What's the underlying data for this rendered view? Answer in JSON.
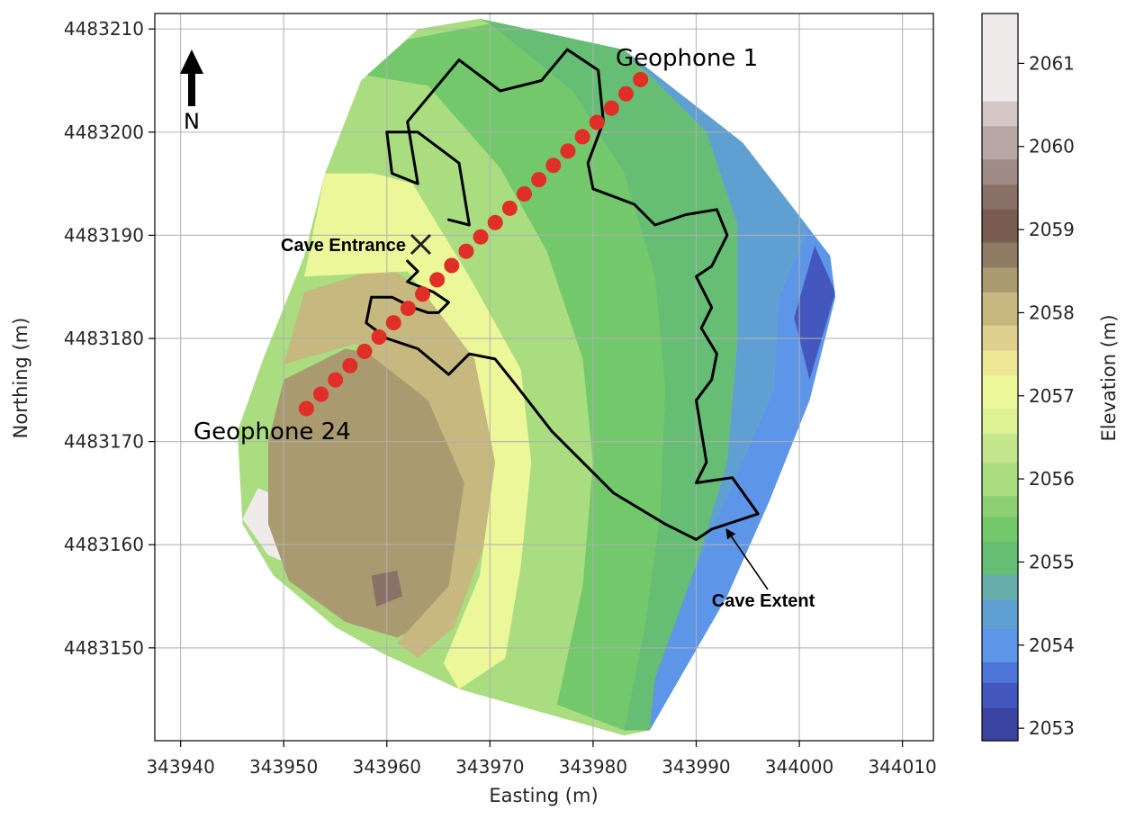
{
  "chart_data": {
    "type": "heatmap",
    "subtype": "filled-contour map",
    "title": "",
    "xlabel": "Easting (m)",
    "ylabel": "Northing (m)",
    "xlim": [
      343937.5,
      344013
    ],
    "ylim": [
      4483141,
      4483211.5
    ],
    "xticks": [
      343940,
      343950,
      343960,
      343970,
      343980,
      343990,
      344000,
      344010
    ],
    "yticks": [
      4483150,
      4483160,
      4483170,
      4483180,
      4483190,
      4483200,
      4483210
    ],
    "grid": true,
    "colorbar": {
      "label": "Elevation (m)",
      "ticks": [
        2053,
        2054,
        2055,
        2056,
        2057,
        2058,
        2059,
        2060,
        2061
      ],
      "range": [
        2052.85,
        2061.6
      ],
      "levels": [
        {
          "lo": 2052.85,
          "hi": 2053.25,
          "color": "#3b44a1"
        },
        {
          "lo": 2053.25,
          "hi": 2053.55,
          "color": "#4457be"
        },
        {
          "lo": 2053.55,
          "hi": 2053.8,
          "color": "#4d74d9"
        },
        {
          "lo": 2053.8,
          "hi": 2054.2,
          "color": "#5d95e8"
        },
        {
          "lo": 2054.2,
          "hi": 2054.55,
          "color": "#609fd2"
        },
        {
          "lo": 2054.55,
          "hi": 2054.85,
          "color": "#67aeac"
        },
        {
          "lo": 2054.85,
          "hi": 2055.25,
          "color": "#66bd74"
        },
        {
          "lo": 2055.25,
          "hi": 2055.55,
          "color": "#73c86b"
        },
        {
          "lo": 2055.55,
          "hi": 2055.8,
          "color": "#8dd074"
        },
        {
          "lo": 2055.8,
          "hi": 2056.2,
          "color": "#a9dd80"
        },
        {
          "lo": 2056.2,
          "hi": 2056.55,
          "color": "#c4e68d"
        },
        {
          "lo": 2056.55,
          "hi": 2056.85,
          "color": "#dff293"
        },
        {
          "lo": 2056.85,
          "hi": 2057.25,
          "color": "#ecf79a"
        },
        {
          "lo": 2057.25,
          "hi": 2057.55,
          "color": "#ede796"
        },
        {
          "lo": 2057.55,
          "hi": 2057.85,
          "color": "#dfd08f"
        },
        {
          "lo": 2057.85,
          "hi": 2058.25,
          "color": "#c6b87e"
        },
        {
          "lo": 2058.25,
          "hi": 2058.55,
          "color": "#a99a70"
        },
        {
          "lo": 2058.55,
          "hi": 2058.85,
          "color": "#8e7c62"
        },
        {
          "lo": 2058.85,
          "hi": 2059.25,
          "color": "#785c50"
        },
        {
          "lo": 2059.25,
          "hi": 2059.55,
          "color": "#8a7168"
        },
        {
          "lo": 2059.55,
          "hi": 2059.85,
          "color": "#a08c87"
        },
        {
          "lo": 2059.85,
          "hi": 2060.25,
          "color": "#b8a7a4"
        },
        {
          "lo": 2060.25,
          "hi": 2060.55,
          "color": "#d4c6c4"
        },
        {
          "lo": 2060.55,
          "hi": 2061.6,
          "color": "#f0ebeb"
        }
      ]
    },
    "map_outline": [
      [
        343959.5,
        4483149.5
      ],
      [
        343967.0,
        4483146.0
      ],
      [
        343983.0,
        4483141.5
      ],
      [
        343985.5,
        4483142.0
      ],
      [
        343993.0,
        4483155.0
      ],
      [
        343997.0,
        4483164.0
      ],
      [
        344001.0,
        4483174.0
      ],
      [
        344003.5,
        4483184.0
      ],
      [
        344003.0,
        4483188.0
      ],
      [
        343994.5,
        4483199.0
      ],
      [
        343983.0,
        4483208.0
      ],
      [
        343969.0,
        4483211.0
      ],
      [
        343963.0,
        4483210.0
      ],
      [
        343957.5,
        4483205.0
      ],
      [
        343954.0,
        4483196.0
      ],
      [
        343952.0,
        4483188.0
      ],
      [
        343948.0,
        4483178.0
      ],
      [
        343945.5,
        4483171.0
      ],
      [
        343946.0,
        4483162.0
      ],
      [
        343949.0,
        4483157.0
      ],
      [
        343955.0,
        4483152.0
      ]
    ],
    "elevation_bands": [
      {
        "elevation": 2061.0,
        "polygon": [
          [
            343946.0,
            4483162.5
          ],
          [
            343948.5,
            4483159.0
          ],
          [
            343952.0,
            4483157.5
          ],
          [
            343953.5,
            4483160.0
          ],
          [
            343951.0,
            4483164.0
          ],
          [
            343947.5,
            4483165.5
          ]
        ]
      },
      {
        "elevation": 2060.0,
        "polygon": [
          [
            343952.5,
            4483158.0
          ],
          [
            343957.0,
            4483155.0
          ],
          [
            343962.0,
            4483156.5
          ],
          [
            343965.0,
            4483161.0
          ],
          [
            343965.0,
            4483168.5
          ],
          [
            343962.0,
            4483171.5
          ],
          [
            343957.0,
            4483170.0
          ],
          [
            343954.0,
            4483165.0
          ]
        ]
      },
      {
        "elevation": 2059.0,
        "polygon": [
          [
            343959.0,
            4483152.5
          ],
          [
            343963.5,
            4483154.0
          ],
          [
            343966.5,
            4483159.5
          ],
          [
            343967.0,
            4483167.0
          ],
          [
            343964.0,
            4483172.5
          ],
          [
            343958.0,
            4483174.5
          ],
          [
            343953.0,
            4483172.5
          ],
          [
            343949.0,
            4483166.0
          ],
          [
            343949.5,
            4483160.5
          ]
        ]
      },
      {
        "elevation": 2058.5,
        "polygon": [
          [
            343950.0,
            4483176.0
          ],
          [
            343956.0,
            4483179.0
          ],
          [
            343961.5,
            4483178.0
          ],
          [
            343966.0,
            4483173.0
          ],
          [
            343968.5,
            4483166.0
          ],
          [
            343968.0,
            4483159.0
          ],
          [
            343965.0,
            4483153.0
          ],
          [
            343961.0,
            4483151.0
          ],
          [
            343956.0,
            4483152.5
          ],
          [
            343950.5,
            4483156.5
          ],
          [
            343948.5,
            4483162.0
          ],
          [
            343948.5,
            4483170.0
          ]
        ]
      },
      {
        "elevation": 2058.0,
        "polygon": [
          [
            343952.0,
            4483184.5
          ],
          [
            343960.0,
            4483187.0
          ],
          [
            343964.5,
            4483184.0
          ],
          [
            343967.5,
            4483180.0
          ],
          [
            343970.0,
            4483176.0
          ],
          [
            343971.0,
            4483168.0
          ],
          [
            343969.5,
            4483160.0
          ],
          [
            343966.5,
            4483152.0
          ],
          [
            343963.0,
            4483149.0
          ],
          [
            343961.0,
            4483150.5
          ],
          [
            343966.0,
            4483156.0
          ],
          [
            343967.5,
            4483166.0
          ],
          [
            343964.0,
            4483174.0
          ],
          [
            343957.0,
            4483179.5
          ],
          [
            343950.0,
            4483177.5
          ]
        ]
      },
      {
        "elevation": 2057.0,
        "polygon": [
          [
            343954.0,
            4483196.0
          ],
          [
            343962.0,
            4483196.0
          ],
          [
            343966.0,
            4483190.0
          ],
          [
            343970.0,
            4483183.0
          ],
          [
            343973.0,
            4483177.0
          ],
          [
            343974.0,
            4483168.0
          ],
          [
            343973.0,
            4483158.0
          ],
          [
            343971.5,
            4483149.0
          ],
          [
            343967.0,
            4483146.0
          ],
          [
            343965.5,
            4483148.5
          ],
          [
            343969.0,
            4483157.0
          ],
          [
            343970.5,
            4483168.0
          ],
          [
            343968.5,
            4483178.0
          ],
          [
            343962.0,
            4483186.5
          ],
          [
            343952.0,
            4483186.0
          ]
        ]
      },
      {
        "elevation": 2056.2,
        "polygon": [
          [
            343957.5,
            4483205.0
          ],
          [
            343965.0,
            4483204.0
          ],
          [
            343972.0,
            4483195.0
          ],
          [
            343976.0,
            4483188.0
          ],
          [
            343979.0,
            4483178.0
          ],
          [
            343980.0,
            4483168.0
          ],
          [
            343979.0,
            4483156.0
          ],
          [
            343976.5,
            4483144.5
          ],
          [
            343971.5,
            4483147.0
          ],
          [
            343973.5,
            4483157.0
          ],
          [
            343974.5,
            4483168.0
          ],
          [
            343973.0,
            4483177.0
          ],
          [
            343968.0,
            4483186.0
          ],
          [
            343962.5,
            4483195.0
          ],
          [
            343955.0,
            4483197.0
          ]
        ]
      },
      {
        "elevation": 2055.5,
        "polygon": [
          [
            343962.0,
            4483209.0
          ],
          [
            343970.0,
            4483210.5
          ],
          [
            343978.0,
            4483204.0
          ],
          [
            343983.0,
            4483196.0
          ],
          [
            343986.0,
            4483186.0
          ],
          [
            343987.0,
            4483175.0
          ],
          [
            343986.5,
            4483163.0
          ],
          [
            343985.0,
            4483152.0
          ],
          [
            343983.0,
            4483142.0
          ],
          [
            343976.5,
            4483144.5
          ],
          [
            343979.0,
            4483156.0
          ],
          [
            343980.0,
            4483168.0
          ],
          [
            343979.0,
            4483178.0
          ],
          [
            343975.5,
            4483188.5
          ],
          [
            343971.0,
            4483196.5
          ],
          [
            343964.0,
            4483204.5
          ],
          [
            343958.0,
            4483205.5
          ]
        ]
      },
      {
        "elevation": 2055.0,
        "polygon": [
          [
            343969.0,
            4483211.0
          ],
          [
            343983.0,
            4483208.0
          ],
          [
            343991.0,
            4483200.0
          ],
          [
            343994.0,
            4483191.0
          ],
          [
            343994.0,
            4483180.0
          ],
          [
            343993.0,
            4483168.0
          ],
          [
            343990.0,
            4483158.0
          ],
          [
            343985.5,
            4483142.0
          ],
          [
            343983.0,
            4483142.0
          ],
          [
            343985.0,
            4483152.0
          ],
          [
            343986.5,
            4483163.0
          ],
          [
            343987.0,
            4483175.0
          ],
          [
            343986.0,
            4483186.0
          ],
          [
            343983.0,
            4483196.0
          ],
          [
            343978.0,
            4483204.0
          ],
          [
            343970.0,
            4483210.5
          ]
        ]
      },
      {
        "elevation": 2054.5,
        "polygon": [
          [
            343983.0,
            4483208.0
          ],
          [
            343994.5,
            4483199.0
          ],
          [
            344001.0,
            4483191.0
          ],
          [
            343998.0,
            4483184.0
          ],
          [
            343997.5,
            4483175.0
          ],
          [
            343994.0,
            4483167.0
          ],
          [
            343990.0,
            4483158.0
          ],
          [
            343986.0,
            4483147.0
          ],
          [
            343985.5,
            4483142.0
          ],
          [
            343990.0,
            4483158.0
          ],
          [
            343993.0,
            4483168.0
          ],
          [
            343994.0,
            4483180.0
          ],
          [
            343994.0,
            4483191.0
          ],
          [
            343991.0,
            4483200.0
          ]
        ]
      },
      {
        "elevation": 2054.0,
        "polygon": [
          [
            343994.5,
            4483199.0
          ],
          [
            344003.0,
            4483188.0
          ],
          [
            344003.5,
            4483184.0
          ],
          [
            344001.0,
            4483174.0
          ],
          [
            343997.0,
            4483164.0
          ],
          [
            343993.0,
            4483155.0
          ],
          [
            343985.5,
            4483142.0
          ],
          [
            343986.0,
            4483147.0
          ],
          [
            343990.0,
            4483158.0
          ],
          [
            343994.0,
            4483167.0
          ],
          [
            343997.5,
            4483175.0
          ],
          [
            343998.0,
            4483184.0
          ],
          [
            344001.0,
            4483191.0
          ]
        ]
      },
      {
        "elevation": 2053.5,
        "polygon": [
          [
            344001.5,
            4483189.0
          ],
          [
            344003.5,
            4483184.5
          ],
          [
            344001.0,
            4483176.0
          ],
          [
            343999.5,
            4483182.0
          ]
        ]
      },
      {
        "elevation": 2059.5,
        "polygon": [
          [
            343959.0,
            4483154.0
          ],
          [
            343961.5,
            4483155.0
          ],
          [
            343961.0,
            4483157.5
          ],
          [
            343958.5,
            4483157.0
          ]
        ]
      }
    ],
    "cave_outline": [
      [
        343966.0,
        4483191.5
      ],
      [
        343968.0,
        4483191.0
      ],
      [
        343967.5,
        4483194.0
      ],
      [
        343967.0,
        4483197.0
      ],
      [
        343963.0,
        4483200.0
      ],
      [
        343960.0,
        4483200.0
      ],
      [
        343960.5,
        4483196.0
      ],
      [
        343963.0,
        4483195.0
      ],
      [
        343962.0,
        4483201.0
      ],
      [
        343967.0,
        4483207.0
      ],
      [
        343971.0,
        4483204.0
      ],
      [
        343975.0,
        4483205.0
      ],
      [
        343977.5,
        4483208.0
      ],
      [
        343980.5,
        4483206.0
      ],
      [
        343981.0,
        4483201.0
      ],
      [
        343979.5,
        4483197.0
      ],
      [
        343980.0,
        4483194.5
      ],
      [
        343984.0,
        4483193.0
      ],
      [
        343986.0,
        4483191.0
      ],
      [
        343989.0,
        4483192.0
      ],
      [
        343992.0,
        4483192.5
      ],
      [
        343993.0,
        4483190.0
      ],
      [
        343991.5,
        4483187.0
      ],
      [
        343990.0,
        4483186.0
      ],
      [
        343991.5,
        4483183.0
      ],
      [
        343990.5,
        4483181.0
      ],
      [
        343992.0,
        4483178.5
      ],
      [
        343991.5,
        4483176.0
      ],
      [
        343990.0,
        4483174.0
      ],
      [
        343990.5,
        4483171.0
      ],
      [
        343991.0,
        4483168.0
      ],
      [
        343990.0,
        4483166.0
      ],
      [
        343993.5,
        4483166.5
      ],
      [
        343996.0,
        4483163.0
      ],
      [
        343991.5,
        4483161.5
      ],
      [
        343990.0,
        4483160.5
      ],
      [
        343987.0,
        4483162.0
      ],
      [
        343982.0,
        4483165.0
      ],
      [
        343976.0,
        4483171.0
      ],
      [
        343972.5,
        4483175.5
      ],
      [
        343970.5,
        4483178.0
      ],
      [
        343968.0,
        4483178.5
      ],
      [
        343966.0,
        4483176.5
      ],
      [
        343963.0,
        4483179.0
      ],
      [
        343960.0,
        4483180.0
      ],
      [
        343958.0,
        4483181.5
      ],
      [
        343958.5,
        4483184.0
      ],
      [
        343960.5,
        4483184.0
      ],
      [
        343962.5,
        4483183.0
      ],
      [
        343964.0,
        4483182.5
      ],
      [
        343965.0,
        4483182.5
      ],
      [
        343966.0,
        4483183.5
      ],
      [
        343964.5,
        4483184.5
      ],
      [
        343962.0,
        4483185.5
      ],
      [
        343963.0,
        4483186.5
      ],
      [
        343962.0,
        4483187.5
      ]
    ],
    "geophones": {
      "count": 24,
      "first": [
        343984.6,
        4483205.1
      ],
      "last": [
        343952.2,
        4483173.2
      ],
      "label_first": "Geophone 1",
      "label_last": "Geophone 24",
      "color": "#e02f26"
    },
    "annotations": {
      "cave_entrance": {
        "text": "Cave Entrance",
        "marker": "x",
        "at": [
          343963.3,
          4483189.2
        ]
      },
      "cave_extent": {
        "text": "Cave Extent",
        "arrow_tip": [
          343992.5,
          4483161.0
        ]
      },
      "north_arrow": {
        "text": "N"
      }
    }
  }
}
